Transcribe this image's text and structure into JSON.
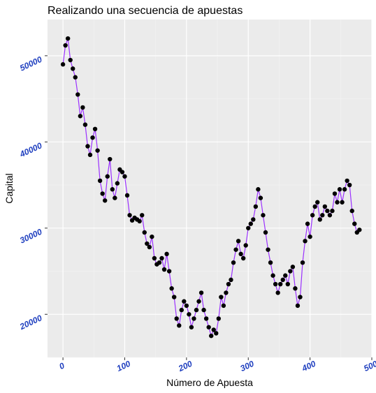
{
  "chart_data": {
    "type": "line",
    "title": "Realizando una secuencia de apuestas",
    "xlabel": "Número de Apuesta",
    "ylabel": "Capital",
    "xlim": [
      -25,
      500
    ],
    "ylim": [
      15000,
      54200
    ],
    "x_ticks": [
      0,
      100,
      200,
      300,
      400,
      500
    ],
    "y_ticks": [
      20000,
      30000,
      40000,
      50000
    ],
    "x_tick_labels": [
      "0",
      "100",
      "200",
      "300",
      "400",
      "500"
    ],
    "y_tick_labels": [
      "20000",
      "30000",
      "40000",
      "50000"
    ],
    "grid": true,
    "markers": true,
    "series": [
      {
        "x": [
          0,
          4,
          8,
          12,
          16,
          20,
          24,
          28,
          32,
          36,
          40,
          44,
          48,
          52,
          56,
          60,
          64,
          68,
          72,
          76,
          80,
          84,
          88,
          92,
          96,
          100,
          104,
          108,
          112,
          116,
          120,
          124,
          128,
          132,
          136,
          140,
          144,
          148,
          152,
          156,
          160,
          164,
          168,
          172,
          176,
          180,
          184,
          188,
          192,
          196,
          200,
          204,
          208,
          212,
          216,
          220,
          224,
          228,
          232,
          236,
          240,
          244,
          248,
          252,
          256,
          260,
          264,
          268,
          272,
          276,
          280,
          284,
          288,
          292,
          296,
          300,
          304,
          308,
          312,
          316,
          320,
          324,
          328,
          332,
          336,
          340,
          344,
          348,
          352,
          356,
          360,
          364,
          368,
          372,
          376,
          380,
          384,
          388,
          392,
          396,
          400,
          404,
          408,
          412,
          416,
          420,
          424,
          428,
          432,
          436,
          440,
          444,
          448,
          452,
          456,
          460,
          464,
          468,
          472,
          476,
          480
        ],
        "y": [
          49000,
          51200,
          52000,
          49500,
          48500,
          47500,
          45500,
          43000,
          44000,
          42000,
          39500,
          38500,
          40500,
          41500,
          39000,
          35500,
          34000,
          33200,
          36000,
          38000,
          34500,
          33500,
          35200,
          36800,
          36500,
          36000,
          33800,
          31500,
          30900,
          31200,
          31000,
          30800,
          31500,
          29500,
          28200,
          27800,
          29000,
          26500,
          25800,
          26000,
          26500,
          25200,
          27000,
          25000,
          23000,
          22000,
          19500,
          18700,
          20500,
          21500,
          21000,
          20000,
          18500,
          19500,
          20500,
          21500,
          22500,
          20500,
          19500,
          18500,
          17500,
          18200,
          17800,
          19500,
          22000,
          21000,
          22500,
          23500,
          24000,
          26000,
          27500,
          28500,
          27000,
          26500,
          28000,
          30000,
          30500,
          31000,
          32500,
          34500,
          33500,
          31500,
          29500,
          27500,
          26000,
          24500,
          23500,
          22500,
          23500,
          24000,
          24500,
          23500,
          25000,
          25500,
          23000,
          21000,
          22000,
          26000,
          28500,
          30500,
          29000,
          31500,
          32500,
          33000,
          31000,
          31500,
          32500,
          32000,
          31500,
          32000,
          34000,
          33000,
          34500,
          33000,
          34500,
          35500,
          35000,
          32000,
          30500,
          29500,
          29800
        ]
      }
    ]
  },
  "colors": {
    "panel_background": "#ebebeb",
    "grid_major": "#ffffff",
    "grid_minor": "#f4f4f4",
    "line": "#9b30ff",
    "points": "#000000",
    "tick_labels": "#1f3fbf",
    "ticks": "#333333"
  }
}
